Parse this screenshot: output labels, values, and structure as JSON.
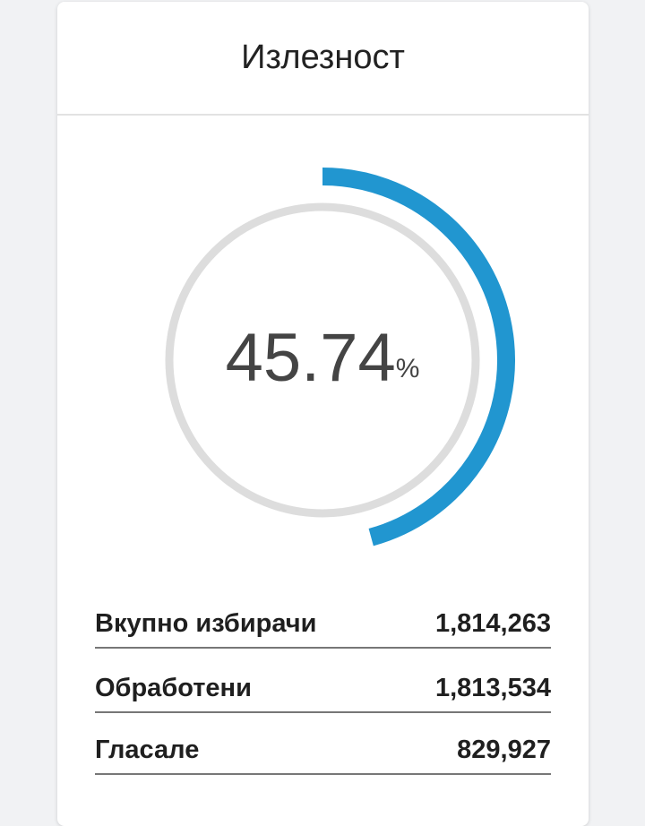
{
  "card": {
    "title": "Излезност"
  },
  "gauge": {
    "value": 45.74,
    "unit": "%",
    "color": "#2196d0",
    "track_color": "#dddddd"
  },
  "stats": [
    {
      "label": "Вкупно избирачи",
      "value": "1,814,263"
    },
    {
      "label": "Обработени",
      "value": "1,813,534"
    },
    {
      "label": "Гласале",
      "value": "829,927"
    }
  ]
}
